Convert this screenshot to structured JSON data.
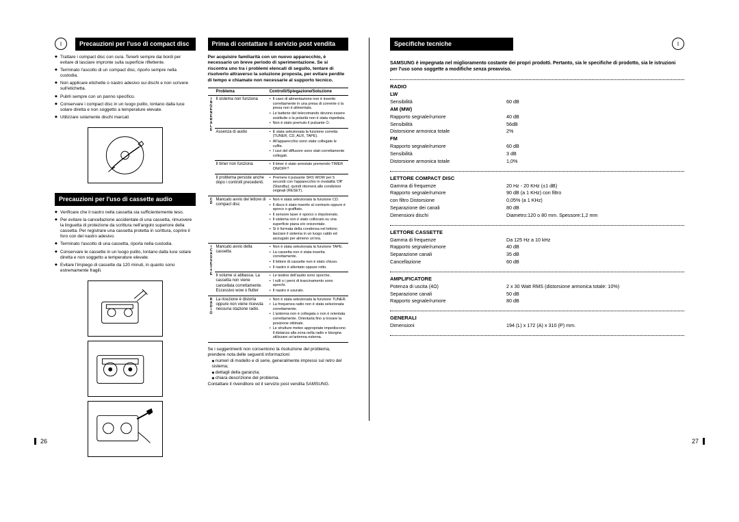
{
  "leftPage": {
    "col1": {
      "header1": "Precauzioni per l'uso di compact disc",
      "bullets1": [
        "Trattare i compact disc con cura. Tenerli sempre dai bordi per evitare di lasciare impronte sulla superficie riflettente.",
        "Terminato l'ascolto di un compact disc, riporlo sempre nella custodia.",
        "Non applicare etichette o nastro adesivo sui dischi e non scrivere sull'etichetta.",
        "Pulirli sempre con un panno specifico.",
        "Conservare i compact disc in un luogo pulito, lontano dalla luce solare diretta e non soggetto a temperature elevate.",
        "Utilizzare solamente dischi marcati"
      ],
      "header2": "Precauzioni per l'uso di cassette audio",
      "bullets2": [
        "Verificare che il nastro nella cassetta sia sufficientemente teso.",
        "Per evitare la cancellazione accidentale di una cassetta, rimuovere la linguetta di protezione da scrittura nell'angolo superiore della cassetta. Per registrare una cassetta protetta in scrittura, coprire il foro con del nastro adesivo.",
        "Terminato l'ascolto di una cassetta, riporla nella custodia.",
        "Conservare le cassette in un luogo pulito, lontano dalla luce solare diretta e non soggetto a temperature elevate.",
        "Evitare l'impiego di cassette da 120 minuti, in quanto sono estremamente fragili."
      ]
    },
    "col2": {
      "header": "Prima di contattare il servizio post vendita",
      "intro": "Per acquisire familiarità con un nuovo apparecchio, è necessario un breve periodo di sperimentazione. Se si riscontra uno tra i problemi elencati di seguito, tentare di risolverlo attraverso la soluzione proposta, per evitare perdite di tempo e chiamate non necessarie al supporto tecnico.",
      "th1": "Problema",
      "th2": "Controlli/Spiegazione/Soluzione",
      "groups": [
        {
          "label": "INGENERALE",
          "rows": [
            {
              "p": "Il sistema non funziona",
              "s": [
                "Il cavo di alimentazione non è inserito correttamente in una presa di corrente o la presa non è alimentata.",
                "Le batterie del telecomando devono essere sostituite o la polarità non è stata rispettata.",
                "Non è stato premuto il pulsante ⏻."
              ]
            },
            {
              "p": "Assenza di audio",
              "s": [
                "È stata selezionata la funzione corretta (TUNER, CD, AUX, TAPE).",
                "All'apparecchio sono state collegate le cuffie.",
                "I cavi del diffusore sono stati correttamente collegati."
              ]
            },
            {
              "p": "Il timer non funziona",
              "s": [
                "Il timer è stato arrestato premendo TIMER ON/OFF?"
              ]
            },
            {
              "p": "Il problema persiste anche dopo i controlli precedenti.",
              "s": [
                "Premere il pulsante SRS WOW per 5 secondi con l'apparecchio in modalità 'Off' (Standby); quindi ritornerà alle condizioni originali (RESET)."
              ]
            }
          ]
        },
        {
          "label": "CD",
          "rows": [
            {
              "p": "Mancato avvio del lettore di compact disc",
              "s": [
                "Non è stata selezionata la funzione CD.",
                "Il disco è stato inserito al contrario oppure è sporco o graffiato.",
                "Il sensore laser è sporco o impolverato.",
                "Il sistema non è stato collocato su una superficie piana e/o orizzontale.",
                "Si è formata della condensa nel lettore; lasciare il sistema in un luogo caldo ed asciugato per almeno un'ora."
              ]
            }
          ]
        },
        {
          "label": "ICASSETTE",
          "rows": [
            {
              "p": "Mancato avvio della cassetta",
              "s": [
                "Non è stata selezionata la funzione TAPE.",
                "La cassetta non è stata inserita correttamente.",
                "Il lettore di cassette non è stato chiuso.",
                "Il nastro è allentato oppure rotto."
              ]
            },
            {
              "p": "Il volume si abbassa. La cassetta non viene cancellata correttamente. Eccessivo wow o flutter",
              "s": [
                "Le testine dell'audio sono sporche.",
                "I rulli o i perni di trascinamento sono sporchi.",
                "Il nastro è usurato."
              ]
            }
          ]
        },
        {
          "label": "RADIO",
          "rows": [
            {
              "p": "La ricezione è distorta oppure non viene ricevuta nessuna stazione radio.",
              "s": [
                "Non è stata selezionata la funzione TUNER.",
                "La frequenza radio non è stata selezionata correttamente.",
                "L'antenna non è collegata o non è orientata correttamente. Orientarla fino a trovare la posizione ottimale.",
                "Le strutture meteo appropriate impediscono il distanza alla zona nella radio e bisogna utilizzare un'antenna esterna."
              ]
            }
          ]
        }
      ],
      "afterTable": {
        "line1": "Se i suggerimenti non consentono la risoluzione del problema, prendere nota delle seguenti informazioni:",
        "items": [
          "numeri di modello e di serie, generalmente impressi sul retro del sistema;",
          "dettagli della garanzia;",
          "chiara descrizione del problema."
        ],
        "line2": "Contattare il rivenditore od il servizio post vendita SAMSUNG."
      }
    },
    "pageNum": "26"
  },
  "rightPage": {
    "header": "Specifiche tecniche",
    "intro": "SAMSUNG è impegnata nel miglioramento costante dei propri prodotti. Pertanto, sia le specifiche di prodotto, sia le istruzioni per l'uso sono soggette a modifiche senza preavviso.",
    "sections": [
      {
        "heading": "RADIO",
        "sub": [
          {
            "label": "LW",
            "rows": [
              [
                "Sensibilità",
                "60 dB"
              ]
            ]
          },
          {
            "label": "AM (MW)",
            "rows": [
              [
                "Rapporto segnale/rumore",
                "40 dB"
              ],
              [
                "Sensibilità",
                "56dB"
              ],
              [
                "Distorsione armonica totale",
                "2%"
              ]
            ]
          },
          {
            "label": "FM",
            "rows": [
              [
                "Rapporto segnale/rumore",
                "60 dB"
              ],
              [
                "Sensibilità",
                "3 dB"
              ],
              [
                "Distorsione armonica totale",
                "1,0%"
              ]
            ]
          }
        ]
      },
      {
        "heading": "LETTORE COMPACT DISC",
        "rows": [
          [
            "Gamma di frequenze",
            "20 Hz - 20 KHz (±1 dB)"
          ],
          [
            "Rapporto segnale/rumore",
            "90 dB (a 1 KHz) con filtro"
          ],
          [
            "con filtro Distorsione",
            "0,05% (a 1 KHz)"
          ],
          [
            "Separazione dei canali",
            "80 dB"
          ],
          [
            "Dimensioni dischi",
            "Diametro:120 o 80 mm. Spessore:1,2 mm"
          ]
        ]
      },
      {
        "heading": "LETTORE CASSETTE",
        "rows": [
          [
            "Gamma di frequenze",
            "Da 125 Hz a 10 kHz"
          ],
          [
            "Rapporto segnale/rumore",
            "40 dB"
          ],
          [
            "Separazione canali",
            "35 dB"
          ],
          [
            "Cancellazione",
            "60 dB"
          ]
        ]
      },
      {
        "heading": "AMPLIFICATORE",
        "rows": [
          [
            "Potenza di uscita (4Ω)",
            "2 x 30 Watt RMS (distorsione armonica totale: 10%)"
          ],
          [
            "Separazione canali",
            "50 dB"
          ],
          [
            "Rapporto segnale/rumore",
            "80 dB"
          ]
        ]
      },
      {
        "heading": "GENERALI",
        "rows": [
          [
            "Dimensioni",
            "194 (L) x 172 (A) x 310 (P) mm."
          ]
        ]
      }
    ],
    "pageNum": "27",
    "cornerLabel": "I"
  }
}
